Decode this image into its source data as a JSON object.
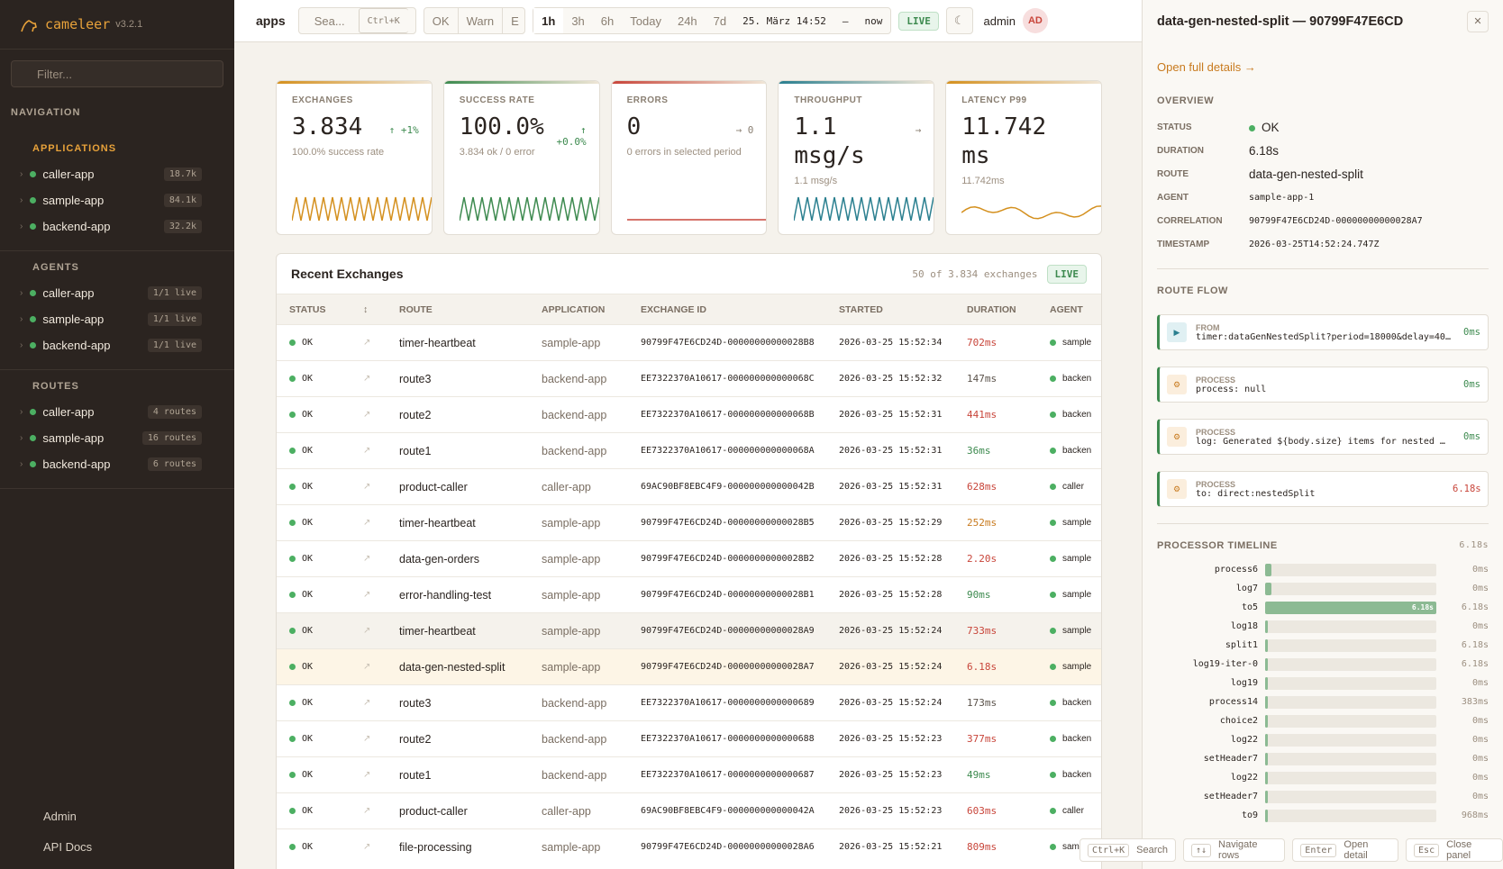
{
  "sidebar": {
    "brand": "cameleer",
    "version": "v3.2.1",
    "filter_placeholder": "Filter...",
    "nav_label": "NAVIGATION",
    "sections": [
      {
        "title": "APPLICATIONS",
        "items": [
          {
            "name": "caller-app",
            "badge": "18.7k"
          },
          {
            "name": "sample-app",
            "badge": "84.1k"
          },
          {
            "name": "backend-app",
            "badge": "32.2k"
          }
        ]
      },
      {
        "title": "AGENTS",
        "items": [
          {
            "name": "caller-app",
            "badge": "1/1 live"
          },
          {
            "name": "sample-app",
            "badge": "1/1 live"
          },
          {
            "name": "backend-app",
            "badge": "1/1 live"
          }
        ]
      },
      {
        "title": "ROUTES",
        "items": [
          {
            "name": "caller-app",
            "badge": "4 routes"
          },
          {
            "name": "sample-app",
            "badge": "16 routes"
          },
          {
            "name": "backend-app",
            "badge": "6 routes"
          }
        ]
      }
    ],
    "footer": [
      "Admin",
      "API Docs"
    ]
  },
  "topbar": {
    "crumb": "apps",
    "search_placeholder": "Sea...",
    "search_kbd": "Ctrl+K",
    "status_filters": [
      "OK",
      "Warn",
      "E"
    ],
    "ranges": [
      "1h",
      "3h",
      "6h",
      "Today",
      "24h",
      "7d"
    ],
    "from": "25. März 14:52",
    "separator": "—",
    "to": "now",
    "live": "LIVE",
    "user": "admin",
    "avatar": "AD"
  },
  "kpis": [
    {
      "label": "EXCHANGES",
      "value": "3.834",
      "delta": "↑ +1%",
      "sub": "100.0% success rate",
      "color": "#d4901e"
    },
    {
      "label": "SUCCESS RATE",
      "value": "100.0%",
      "delta": "↑ +0.0%",
      "sub": "3.834 ok / 0 error",
      "color": "#3d8a4f"
    },
    {
      "label": "ERRORS",
      "value": "0",
      "delta": "→ 0",
      "sub": "0 errors in selected period",
      "color": "#c8453a"
    },
    {
      "label": "THROUGHPUT",
      "value": "1.1 msg/s",
      "delta": "→",
      "sub": "1.1 msg/s",
      "color": "#2a7f8f"
    },
    {
      "label": "LATENCY P99",
      "value": "11.742 ms",
      "delta": "",
      "sub": "11.742ms",
      "color": "#d4901e"
    }
  ],
  "table": {
    "title": "Recent Exchanges",
    "count": "50 of 3.834 exchanges",
    "live": "LIVE",
    "columns": [
      "STATUS",
      "ROUTE",
      "APPLICATION",
      "EXCHANGE ID",
      "STARTED",
      "DURATION",
      "AGENT"
    ],
    "rows": [
      {
        "status": "OK",
        "route": "timer-heartbeat",
        "app": "sample-app",
        "id": "90799F47E6CD24D-00000000000028B8",
        "started": "2026-03-25 15:52:34",
        "duration": "702ms",
        "color": "#c8453a",
        "agent": "sample"
      },
      {
        "status": "OK",
        "route": "route3",
        "app": "backend-app",
        "id": "EE7322370A10617-000000000000068C",
        "started": "2026-03-25 15:52:32",
        "duration": "147ms",
        "color": "#5a524a",
        "agent": "backen"
      },
      {
        "status": "OK",
        "route": "route2",
        "app": "backend-app",
        "id": "EE7322370A10617-000000000000068B",
        "started": "2026-03-25 15:52:31",
        "duration": "441ms",
        "color": "#c8453a",
        "agent": "backen"
      },
      {
        "status": "OK",
        "route": "route1",
        "app": "backend-app",
        "id": "EE7322370A10617-000000000000068A",
        "started": "2026-03-25 15:52:31",
        "duration": "36ms",
        "color": "#3d8a4f",
        "agent": "backen"
      },
      {
        "status": "OK",
        "route": "product-caller",
        "app": "caller-app",
        "id": "69AC90BF8EBC4F9-000000000000042B",
        "started": "2026-03-25 15:52:31",
        "duration": "628ms",
        "color": "#c8453a",
        "agent": "caller"
      },
      {
        "status": "OK",
        "route": "timer-heartbeat",
        "app": "sample-app",
        "id": "90799F47E6CD24D-00000000000028B5",
        "started": "2026-03-25 15:52:29",
        "duration": "252ms",
        "color": "#c87a1e",
        "agent": "sample"
      },
      {
        "status": "OK",
        "route": "data-gen-orders",
        "app": "sample-app",
        "id": "90799F47E6CD24D-00000000000028B2",
        "started": "2026-03-25 15:52:28",
        "duration": "2.20s",
        "color": "#c8453a",
        "agent": "sample"
      },
      {
        "status": "OK",
        "route": "error-handling-test",
        "app": "sample-app",
        "id": "90799F47E6CD24D-00000000000028B1",
        "started": "2026-03-25 15:52:28",
        "duration": "90ms",
        "color": "#3d8a4f",
        "agent": "sample"
      },
      {
        "status": "OK",
        "route": "timer-heartbeat",
        "app": "sample-app",
        "id": "90799F47E6CD24D-00000000000028A9",
        "started": "2026-03-25 15:52:24",
        "duration": "733ms",
        "color": "#c8453a",
        "agent": "sample"
      },
      {
        "status": "OK",
        "route": "data-gen-nested-split",
        "app": "sample-app",
        "id": "90799F47E6CD24D-00000000000028A7",
        "started": "2026-03-25 15:52:24",
        "duration": "6.18s",
        "color": "#c8453a",
        "agent": "sample"
      },
      {
        "status": "OK",
        "route": "route3",
        "app": "backend-app",
        "id": "EE7322370A10617-0000000000000689",
        "started": "2026-03-25 15:52:24",
        "duration": "173ms",
        "color": "#5a524a",
        "agent": "backen"
      },
      {
        "status": "OK",
        "route": "route2",
        "app": "backend-app",
        "id": "EE7322370A10617-0000000000000688",
        "started": "2026-03-25 15:52:23",
        "duration": "377ms",
        "color": "#c8453a",
        "agent": "backen"
      },
      {
        "status": "OK",
        "route": "route1",
        "app": "backend-app",
        "id": "EE7322370A10617-0000000000000687",
        "started": "2026-03-25 15:52:23",
        "duration": "49ms",
        "color": "#3d8a4f",
        "agent": "backen"
      },
      {
        "status": "OK",
        "route": "product-caller",
        "app": "caller-app",
        "id": "69AC90BF8EBC4F9-000000000000042A",
        "started": "2026-03-25 15:52:23",
        "duration": "603ms",
        "color": "#c8453a",
        "agent": "caller"
      },
      {
        "status": "OK",
        "route": "file-processing",
        "app": "sample-app",
        "id": "90799F47E6CD24D-00000000000028A6",
        "started": "2026-03-25 15:52:21",
        "duration": "809ms",
        "color": "#c8453a",
        "agent": "samp"
      }
    ]
  },
  "detail": {
    "title": "data-gen-nested-split — 90799F47E6CD",
    "link": "Open full details →",
    "overview_title": "OVERVIEW",
    "fields": [
      {
        "label": "STATUS",
        "value": "OK"
      },
      {
        "label": "DURATION",
        "value": "6.18s"
      },
      {
        "label": "ROUTE",
        "value": "data-gen-nested-split"
      },
      {
        "label": "AGENT",
        "value": "sample-app-1"
      },
      {
        "label": "CORRELATION",
        "value": "90799F47E6CD24D-00000000000028A7"
      },
      {
        "label": "TIMESTAMP",
        "value": "2026-03-25T14:52:24.747Z"
      }
    ],
    "flow_title": "ROUTE FLOW",
    "flow": [
      {
        "kind": "FROM",
        "text": "timer:dataGenNestedSplit?period=18000&delay=40…",
        "duration": "0ms"
      },
      {
        "kind": "PROCESS",
        "text": "process: null",
        "duration": "0ms"
      },
      {
        "kind": "PROCESS",
        "text": "log: Generated ${body.size} items for nested  …",
        "duration": "0ms"
      },
      {
        "kind": "PROCESS",
        "text": "to: direct:nestedSplit",
        "duration": "6.18s"
      }
    ],
    "timeline_title": "PROCESSOR TIMELINE",
    "timeline_total": "6.18s",
    "timeline": [
      {
        "name": "process6",
        "duration": "0ms"
      },
      {
        "name": "log7",
        "duration": "0ms"
      },
      {
        "name": "to5",
        "bar_label": "6.18s",
        "duration": "6.18s"
      },
      {
        "name": "log18",
        "duration": "0ms"
      },
      {
        "name": "split1",
        "duration": "6.18s"
      },
      {
        "name": "log19-iter-0",
        "duration": "6.18s"
      },
      {
        "name": "log19",
        "duration": "0ms"
      },
      {
        "name": "process14",
        "duration": "383ms"
      },
      {
        "name": "choice2",
        "duration": "0ms"
      },
      {
        "name": "log22",
        "duration": "0ms"
      },
      {
        "name": "setHeader7",
        "duration": "0ms"
      },
      {
        "name": "log22",
        "duration": "0ms"
      },
      {
        "name": "setHeader7",
        "duration": "0ms"
      },
      {
        "name": "to9",
        "duration": "968ms"
      }
    ]
  },
  "shortcuts": [
    {
      "key": "Ctrl+K",
      "label": "Search"
    },
    {
      "key": "↑↓",
      "label": "Navigate rows"
    },
    {
      "key": "Enter",
      "label": "Open detail"
    },
    {
      "key": "Esc",
      "label": "Close panel"
    }
  ]
}
